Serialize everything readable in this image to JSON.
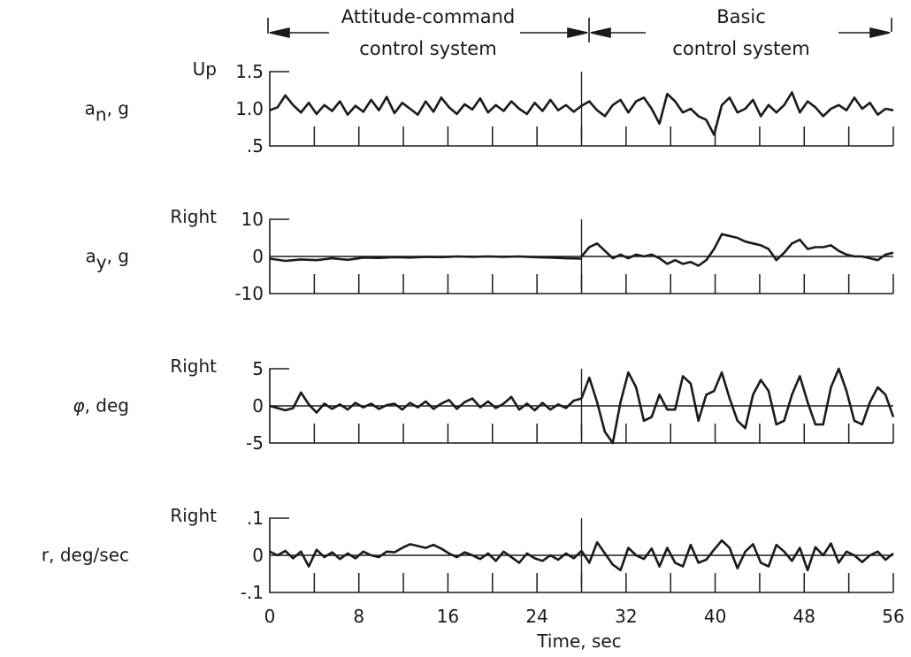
{
  "chart_data": {
    "type": "line",
    "xlabel": "Time, sec",
    "xlim": [
      0,
      56
    ],
    "x_ticks": [
      "0",
      "8",
      "16",
      "24",
      "32",
      "40",
      "48",
      "56"
    ],
    "regions": [
      {
        "label_line1": "Attitude-command",
        "label_line2": "control system",
        "x_start": 0,
        "x_end": 28
      },
      {
        "label_line1": "Basic",
        "label_line2": "control system",
        "x_start": 28,
        "x_end": 56
      }
    ],
    "panels": [
      {
        "id": "an",
        "label_main": "a",
        "label_sub": "n",
        "label_unit": ", g",
        "direction": "Up",
        "ylim": [
          0.5,
          1.5
        ],
        "y_ticks": [
          "1.5",
          "1.0",
          ".5"
        ],
        "y_tick_values": [
          1.5,
          1.0,
          0.5
        ],
        "reference": null,
        "series": [
          {
            "x": [
              0,
              0.7,
              1.4,
              2.1,
              2.8,
              3.5,
              4.2,
              4.9,
              5.6,
              6.3,
              7.0,
              7.7,
              8.4,
              9.1,
              9.8,
              10.5,
              11.2,
              11.9,
              12.6,
              13.3,
              14.0,
              14.7,
              15.4,
              16.1,
              16.8,
              17.5,
              18.2,
              18.9,
              19.6,
              20.3,
              21.0,
              21.7,
              22.4,
              23.1,
              23.8,
              24.5,
              25.2,
              25.9,
              26.6,
              27.3,
              28.0
            ],
            "y": [
              0.98,
              1.02,
              1.18,
              1.05,
              0.95,
              1.08,
              0.93,
              1.05,
              0.97,
              1.1,
              0.92,
              1.04,
              0.96,
              1.12,
              0.98,
              1.16,
              0.94,
              1.08,
              1.0,
              0.92,
              1.1,
              0.96,
              1.15,
              1.02,
              0.93,
              1.06,
              0.99,
              1.14,
              0.95,
              1.05,
              0.97,
              1.1,
              1.0,
              0.93,
              1.08,
              0.97,
              1.12,
              0.98,
              1.05,
              0.96,
              1.04
            ]
          },
          {
            "x": [
              28.0,
              28.7,
              29.4,
              30.1,
              30.8,
              31.5,
              32.2,
              32.9,
              33.6,
              34.3,
              35.0,
              35.7,
              36.4,
              37.1,
              37.8,
              38.5,
              39.2,
              39.9,
              40.6,
              41.3,
              42.0,
              42.7,
              43.4,
              44.1,
              44.8,
              45.5,
              46.2,
              46.9,
              47.6,
              48.3,
              49.0,
              49.7,
              50.4,
              51.1,
              51.8,
              52.5,
              53.2,
              53.9,
              54.6,
              55.3,
              56.0
            ],
            "y": [
              1.04,
              1.1,
              0.98,
              0.9,
              1.05,
              1.12,
              0.95,
              1.1,
              1.15,
              1.0,
              0.8,
              1.2,
              1.1,
              0.95,
              1.0,
              0.9,
              0.85,
              0.65,
              1.05,
              1.15,
              0.95,
              1.0,
              1.12,
              0.9,
              1.05,
              0.95,
              1.05,
              1.22,
              0.95,
              1.1,
              1.02,
              0.9,
              1.0,
              1.05,
              0.98,
              1.15,
              1.0,
              1.08,
              0.92,
              1.0,
              0.98
            ]
          }
        ]
      },
      {
        "id": "ay",
        "label_main": "a",
        "label_sub": "y",
        "label_unit": ", g",
        "direction": "Right",
        "ylim": [
          -10,
          10
        ],
        "y_ticks": [
          "10",
          "0",
          "-10"
        ],
        "y_tick_values": [
          10,
          0,
          -10
        ],
        "reference": 0,
        "series": [
          {
            "x": [
              0,
              1.4,
              2.8,
              4.2,
              5.6,
              7.0,
              8.4,
              9.8,
              11.2,
              12.6,
              14.0,
              15.4,
              16.8,
              18.2,
              19.6,
              21.0,
              22.4,
              23.8,
              25.2,
              26.6,
              28.0
            ],
            "y": [
              -0.6,
              -1.2,
              -0.8,
              -1.0,
              -0.5,
              -0.9,
              -0.3,
              -0.4,
              -0.2,
              -0.3,
              -0.1,
              -0.2,
              0.0,
              -0.1,
              0.0,
              -0.1,
              0.0,
              -0.2,
              -0.3,
              -0.5,
              -0.6
            ]
          },
          {
            "x": [
              28.0,
              28.7,
              29.4,
              30.1,
              30.8,
              31.5,
              32.2,
              32.9,
              33.6,
              34.3,
              35.0,
              35.7,
              36.4,
              37.1,
              37.8,
              38.5,
              39.2,
              39.9,
              40.6,
              41.3,
              42.0,
              42.7,
              43.4,
              44.1,
              44.8,
              45.5,
              46.2,
              46.9,
              47.6,
              48.3,
              49.0,
              49.7,
              50.4,
              51.1,
              51.8,
              52.5,
              53.2,
              53.9,
              54.6,
              55.3,
              56.0
            ],
            "y": [
              0.0,
              2.5,
              3.5,
              1.5,
              -0.5,
              0.5,
              -0.5,
              0.5,
              0.0,
              0.5,
              -0.5,
              -2.0,
              -1.0,
              -2.0,
              -1.5,
              -2.5,
              -1.0,
              2.0,
              6.0,
              5.5,
              5.0,
              4.0,
              3.5,
              3.0,
              2.0,
              -1.0,
              1.0,
              3.5,
              4.5,
              2.0,
              2.5,
              2.5,
              3.0,
              1.5,
              0.5,
              0.0,
              0.0,
              -0.5,
              -1.0,
              0.5,
              1.0
            ]
          }
        ]
      },
      {
        "id": "phi",
        "label_main": "φ",
        "label_sub": "",
        "label_unit": ", deg",
        "direction": "Right",
        "ylim": [
          -5,
          5
        ],
        "y_ticks": [
          "5",
          "0",
          "-5"
        ],
        "y_tick_values": [
          5,
          0,
          -5
        ],
        "reference": 0,
        "series": [
          {
            "x": [
              0,
              0.7,
              1.4,
              2.1,
              2.8,
              3.5,
              4.2,
              4.9,
              5.6,
              6.3,
              7.0,
              7.7,
              8.4,
              9.1,
              9.8,
              10.5,
              11.2,
              11.9,
              12.6,
              13.3,
              14.0,
              14.7,
              15.4,
              16.1,
              16.8,
              17.5,
              18.2,
              18.9,
              19.6,
              20.3,
              21.0,
              21.7,
              22.4,
              23.1,
              23.8,
              24.5,
              25.2,
              25.9,
              26.6,
              27.3,
              28.0
            ],
            "y": [
              0,
              -0.3,
              -0.6,
              -0.3,
              1.8,
              0.2,
              -0.9,
              0.3,
              -0.4,
              0.2,
              -0.5,
              0.4,
              -0.2,
              0.3,
              -0.4,
              0.1,
              0.3,
              -0.5,
              0.4,
              -0.2,
              0.6,
              -0.4,
              0.3,
              0.8,
              -0.4,
              0.5,
              1.0,
              -0.2,
              0.6,
              -0.3,
              0.3,
              1.2,
              -0.5,
              0.3,
              -0.6,
              0.4,
              -0.5,
              0.2,
              -0.3,
              0.7,
              1.0
            ]
          },
          {
            "x": [
              28.0,
              28.7,
              29.4,
              30.1,
              30.8,
              31.5,
              32.2,
              32.9,
              33.6,
              34.3,
              35.0,
              35.7,
              36.4,
              37.1,
              37.8,
              38.5,
              39.2,
              39.9,
              40.6,
              41.3,
              42.0,
              42.7,
              43.4,
              44.1,
              44.8,
              45.5,
              46.2,
              46.9,
              47.6,
              48.3,
              49.0,
              49.7,
              50.4,
              51.1,
              51.8,
              52.5,
              53.2,
              53.9,
              54.6,
              55.3,
              56.0
            ],
            "y": [
              1.0,
              3.8,
              0.5,
              -3.5,
              -5.0,
              0.5,
              4.5,
              2.5,
              -2.0,
              -1.5,
              1.5,
              -0.5,
              -0.5,
              4.0,
              3.0,
              -2.0,
              1.5,
              2.0,
              4.5,
              1.0,
              -2.0,
              -3.0,
              1.5,
              3.5,
              2.0,
              -2.5,
              -2.0,
              1.5,
              4.0,
              0.5,
              -2.5,
              -2.5,
              2.5,
              5.0,
              2.0,
              -2.0,
              -2.5,
              0.5,
              2.5,
              1.5,
              -1.5
            ]
          }
        ]
      },
      {
        "id": "r",
        "label_main": "r",
        "label_sub": "",
        "label_unit": ", deg/sec",
        "direction": "Right",
        "ylim": [
          -0.1,
          0.1
        ],
        "y_ticks": [
          ".1",
          "0",
          "-.1"
        ],
        "y_tick_values": [
          0.1,
          0,
          -0.1
        ],
        "reference": 0,
        "series": [
          {
            "x": [
              0,
              0.7,
              1.4,
              2.1,
              2.8,
              3.5,
              4.2,
              4.9,
              5.6,
              6.3,
              7.0,
              7.7,
              8.4,
              9.1,
              9.8,
              10.5,
              11.2,
              11.9,
              12.6,
              13.3,
              14.0,
              14.7,
              15.4,
              16.1,
              16.8,
              17.5,
              18.2,
              18.9,
              19.6,
              20.3,
              21.0,
              21.7,
              22.4,
              23.1,
              23.8,
              24.5,
              25.2,
              25.9,
              26.6,
              27.3,
              28.0
            ],
            "y": [
              0.01,
              0.0,
              0.012,
              -0.008,
              0.01,
              -0.03,
              0.015,
              -0.005,
              0.008,
              -0.01,
              0.005,
              -0.008,
              0.01,
              0.0,
              -0.005,
              0.01,
              0.008,
              0.02,
              0.03,
              0.025,
              0.02,
              0.028,
              0.018,
              0.005,
              -0.005,
              0.008,
              0.0,
              -0.01,
              0.005,
              -0.015,
              0.01,
              -0.005,
              -0.02,
              0.005,
              -0.008,
              -0.015,
              0.0,
              -0.012,
              0.005,
              -0.008,
              0.012
            ]
          },
          {
            "x": [
              28.0,
              28.7,
              29.4,
              30.1,
              30.8,
              31.5,
              32.2,
              32.9,
              33.6,
              34.3,
              35.0,
              35.7,
              36.4,
              37.1,
              37.8,
              38.5,
              39.2,
              39.9,
              40.6,
              41.3,
              42.0,
              42.7,
              43.4,
              44.1,
              44.8,
              45.5,
              46.2,
              46.9,
              47.6,
              48.3,
              49.0,
              49.7,
              50.4,
              51.1,
              51.8,
              52.5,
              53.2,
              53.9,
              54.6,
              55.3,
              56.0
            ],
            "y": [
              0.012,
              -0.02,
              0.035,
              0.005,
              -0.025,
              -0.04,
              0.02,
              0.0,
              -0.01,
              0.018,
              -0.03,
              0.02,
              -0.02,
              -0.03,
              0.028,
              -0.02,
              -0.012,
              0.015,
              0.04,
              0.02,
              -0.035,
              0.01,
              0.03,
              -0.02,
              -0.03,
              0.028,
              0.01,
              -0.015,
              0.02,
              -0.04,
              0.022,
              0.0,
              0.032,
              -0.02,
              0.01,
              0.0,
              -0.018,
              0.0,
              0.01,
              -0.012,
              0.005
            ]
          }
        ]
      }
    ]
  }
}
